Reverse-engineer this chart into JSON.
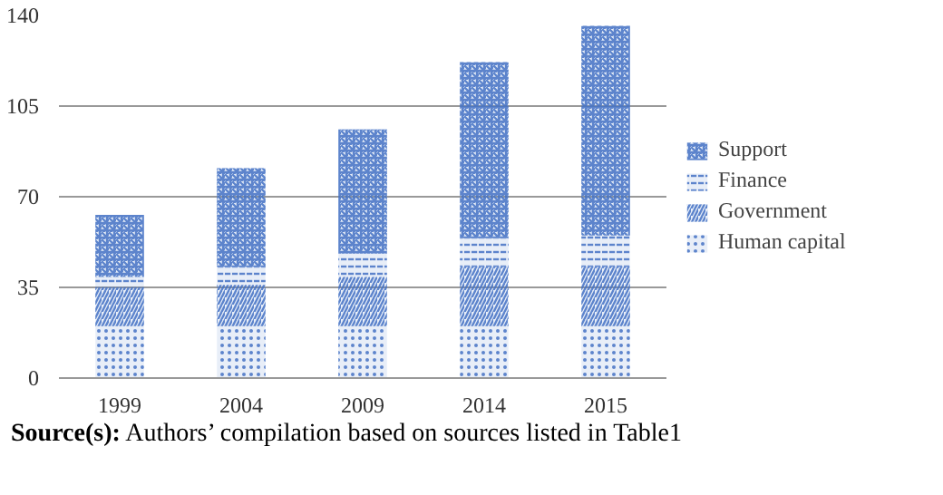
{
  "chart_data": {
    "type": "bar",
    "stacked": true,
    "categories": [
      "1999",
      "2004",
      "2009",
      "2014",
      "2015"
    ],
    "series": [
      {
        "name": "Human capital",
        "color": "#4472c4",
        "values": [
          20,
          20,
          20,
          20,
          20
        ]
      },
      {
        "name": "Government",
        "color": "#4472c4",
        "values": [
          15,
          16,
          19,
          23,
          23
        ]
      },
      {
        "name": "Finance",
        "color": "#4472c4",
        "values": [
          4,
          7,
          9,
          11,
          12
        ]
      },
      {
        "name": "Support",
        "color": "#4472c4",
        "values": [
          24,
          38,
          48,
          68,
          81
        ]
      }
    ],
    "ylim": [
      0,
      140
    ],
    "yticks": [
      0,
      35,
      70,
      105,
      140
    ],
    "grid": "y",
    "legend": "right",
    "annotations": [
      "Source(s): Authors’ compilation based on sources listed in Table1"
    ]
  }
}
